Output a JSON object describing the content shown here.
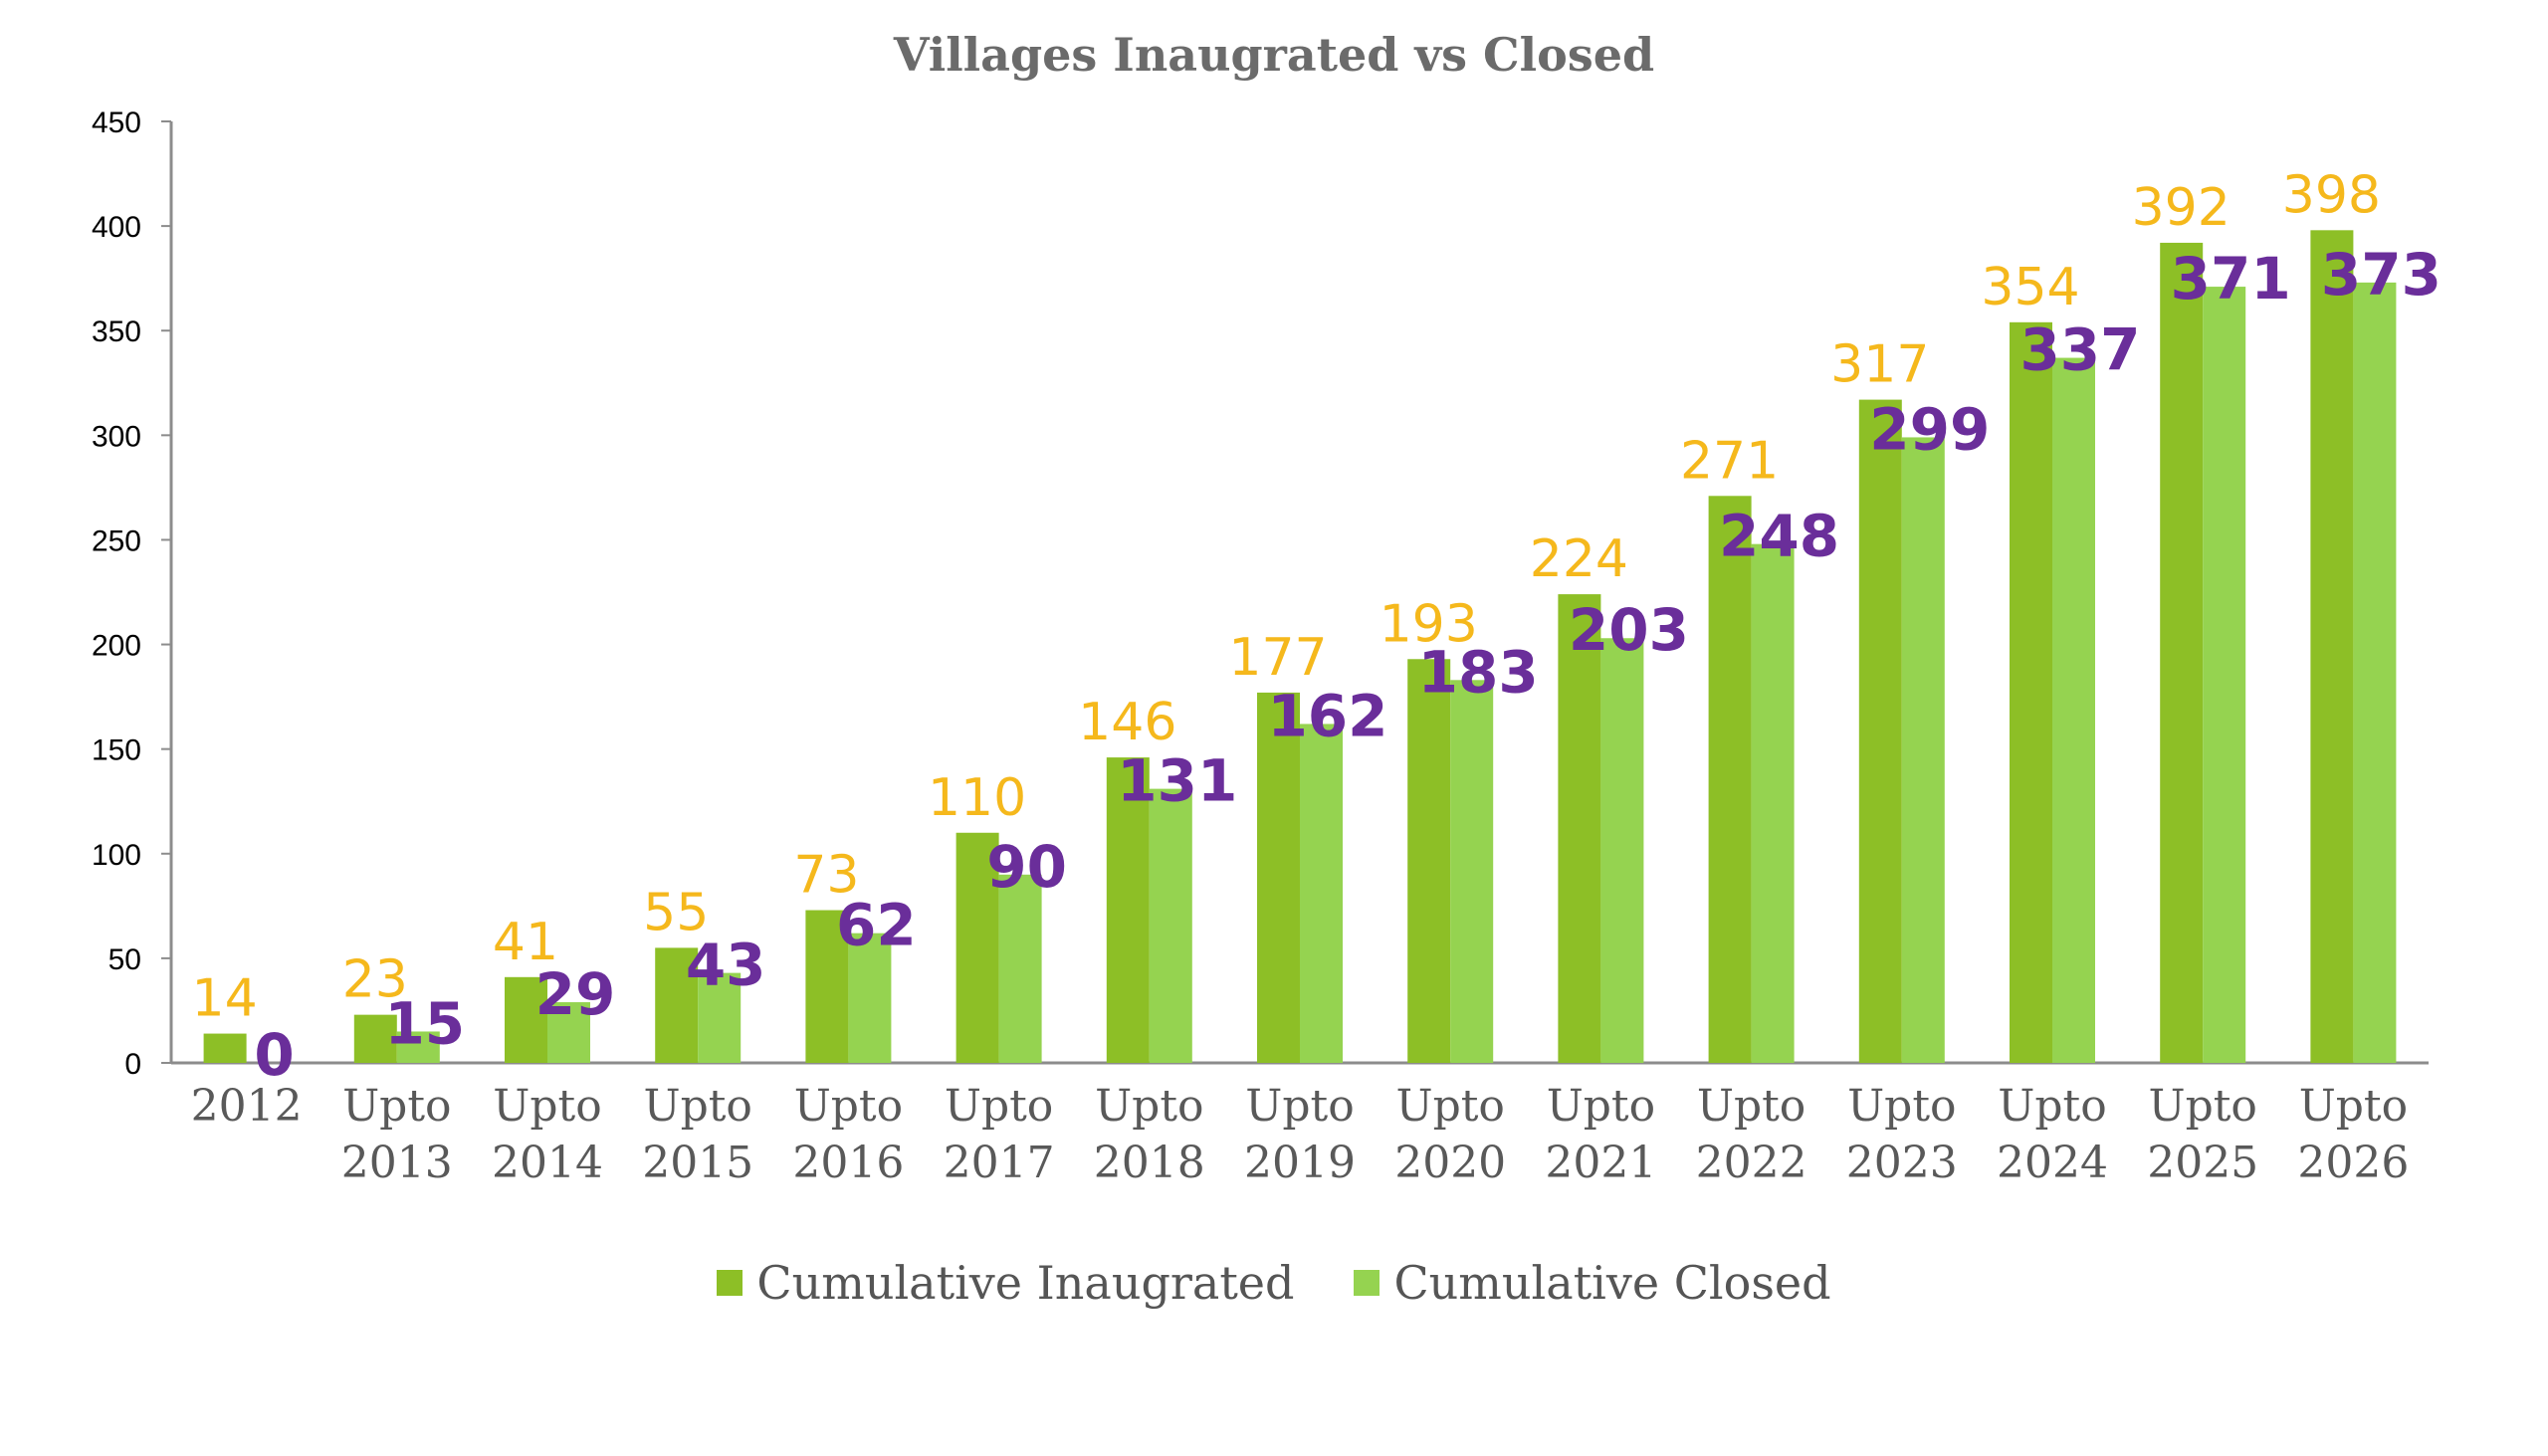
{
  "chart_data": {
    "type": "bar",
    "title": "Villages Inaugrated vs Closed",
    "categories": [
      [
        "2012"
      ],
      [
        "Upto",
        "2013"
      ],
      [
        "Upto",
        "2014"
      ],
      [
        "Upto",
        "2015"
      ],
      [
        "Upto",
        "2016"
      ],
      [
        "Upto",
        "2017"
      ],
      [
        "Upto",
        "2018"
      ],
      [
        "Upto",
        "2019"
      ],
      [
        "Upto",
        "2020"
      ],
      [
        "Upto",
        "2021"
      ],
      [
        "Upto",
        "2022"
      ],
      [
        "Upto",
        "2023"
      ],
      [
        "Upto",
        "2024"
      ],
      [
        "Upto",
        "2025"
      ],
      [
        "Upto",
        "2026"
      ]
    ],
    "series": [
      {
        "name": "Cumulative Inaugrated",
        "color": "#8dbf26",
        "label_color": "#f5b81c",
        "values": [
          14,
          23,
          41,
          55,
          73,
          110,
          146,
          177,
          193,
          224,
          271,
          317,
          354,
          392,
          398
        ]
      },
      {
        "name": "Cumulative Closed",
        "color": "#95d350",
        "label_color": "#6a2e9a",
        "values": [
          0,
          15,
          29,
          43,
          62,
          90,
          131,
          162,
          183,
          203,
          248,
          299,
          337,
          371,
          373
        ]
      }
    ],
    "ylim": [
      0,
      450
    ],
    "yticks": [
      0,
      50,
      100,
      150,
      200,
      250,
      300,
      350,
      400,
      450
    ],
    "xlabel": "",
    "ylabel": "",
    "grid": false,
    "legend_position": "bottom"
  }
}
